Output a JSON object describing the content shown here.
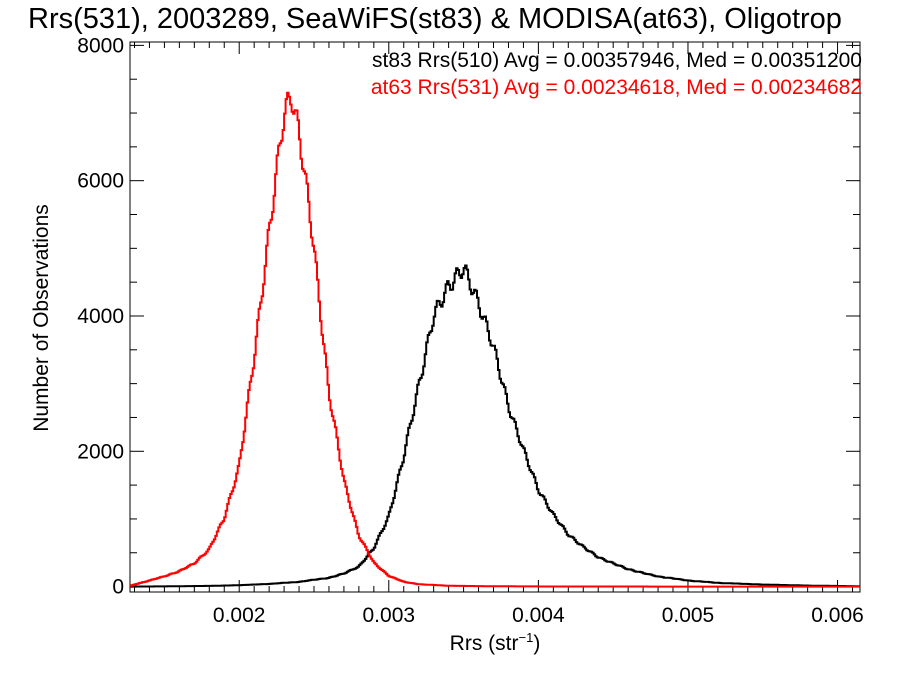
{
  "chart_data": {
    "type": "line",
    "title": "Rrs(531), 2003289, SeaWiFS(st83) & MODISA(at63), Oligotrop",
    "xlabel_text": "Rrs (str",
    "xlabel_exponent": "−1",
    "xlabel_suffix": ")",
    "ylabel": "Number of Observations",
    "xlim": [
      0.00127,
      0.00615
    ],
    "ylim": [
      -80,
      8050
    ],
    "xticks": [
      0.002,
      0.003,
      0.004,
      0.005,
      0.006
    ],
    "xtick_labels": [
      "0.002",
      "0.003",
      "0.004",
      "0.005",
      "0.006"
    ],
    "yticks": [
      0,
      2000,
      4000,
      6000,
      8000
    ],
    "ytick_labels": [
      "0",
      "2000",
      "4000",
      "6000",
      "8000"
    ],
    "grid": false,
    "legend_position": "top-right",
    "legend": [
      {
        "text": "st83 Rrs(510) Avg = 0.00357946, Med = 0.00351200",
        "color": "#000000"
      },
      {
        "text": "at63 Rrs(531) Avg = 0.00234618, Med = 0.00234682",
        "color": "#ff0000"
      }
    ],
    "series": [
      {
        "color": "#000000",
        "x": [
          0.00127,
          0.0015,
          0.0018,
          0.002,
          0.0022,
          0.0024,
          0.0026,
          0.0027,
          0.0028,
          0.0029,
          0.003,
          0.0031,
          0.0032,
          0.0033,
          0.0034,
          0.0035,
          0.0036,
          0.0037,
          0.0038,
          0.0039,
          0.004,
          0.0041,
          0.0042,
          0.0043,
          0.0044,
          0.0045,
          0.0046,
          0.0047,
          0.0048,
          0.005,
          0.0052,
          0.0055,
          0.0058,
          0.00615
        ],
        "y": [
          0,
          3,
          10,
          20,
          40,
          70,
          130,
          190,
          300,
          560,
          1050,
          1900,
          3000,
          3950,
          4500,
          4650,
          4250,
          3500,
          2700,
          2000,
          1450,
          1050,
          780,
          580,
          440,
          340,
          260,
          200,
          150,
          90,
          55,
          30,
          15,
          5
        ]
      },
      {
        "color": "#ff0000",
        "x": [
          0.00127,
          0.0013,
          0.0014,
          0.0015,
          0.0016,
          0.0017,
          0.0018,
          0.0019,
          0.002,
          0.0021,
          0.0022,
          0.0023,
          0.00235,
          0.0024,
          0.0025,
          0.0026,
          0.0027,
          0.0028,
          0.0029,
          0.003,
          0.0031,
          0.0032,
          0.0034,
          0.0037,
          0.004,
          0.005,
          0.00615
        ],
        "y": [
          10,
          30,
          90,
          150,
          230,
          340,
          560,
          1000,
          1800,
          3350,
          5300,
          6900,
          7300,
          6800,
          4950,
          2900,
          1550,
          760,
          350,
          160,
          70,
          35,
          12,
          5,
          2,
          0,
          0
        ]
      }
    ]
  }
}
